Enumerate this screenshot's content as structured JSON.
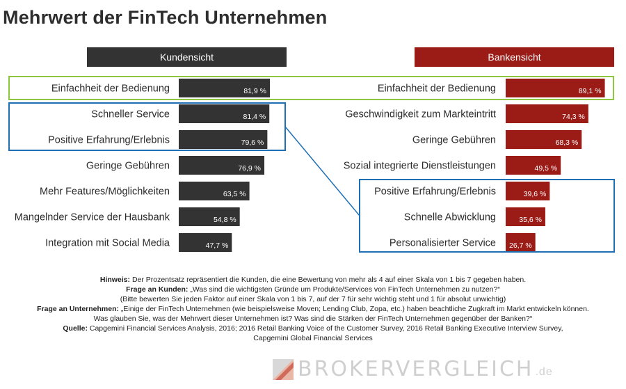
{
  "title": "Mehrwert der FinTech Unternehmen",
  "colors": {
    "kunden": "#333333",
    "bank": "#9b1b17",
    "highlight_green": "#8dc63f",
    "highlight_blue": "#1f6fb5"
  },
  "chart_data": [
    {
      "type": "bar",
      "title": "Kundensicht",
      "categories": [
        "Einfachheit der Bedienung",
        "Schneller Service",
        "Positive Erfahrung/Erlebnis",
        "Geringe Gebühren",
        "Mehr Features/Möglichkeiten",
        "Mangelnder Service der Hausbank",
        "Integration mit Social Media"
      ],
      "values": [
        81.9,
        81.4,
        79.6,
        76.9,
        63.5,
        54.8,
        47.7
      ],
      "labels": [
        "81,9 %",
        "81,4 %",
        "79,6 %",
        "76,9 %",
        "63,5 %",
        "54,8 %",
        "47,7 %"
      ],
      "orientation": "horizontal",
      "xlim": [
        0,
        100
      ],
      "color": "#333333"
    },
    {
      "type": "bar",
      "title": "Bankensicht",
      "categories": [
        "Einfachheit der Bedienung",
        "Geschwindigkeit zum Markteintritt",
        "Geringe Gebühren",
        "Sozial integrierte Dienstleistungen",
        "Positive Erfahrung/Erlebnis",
        "Schnelle Abwicklung",
        "Personalisierter Service"
      ],
      "values": [
        89.1,
        74.3,
        68.3,
        49.5,
        39.6,
        35.6,
        26.7
      ],
      "labels": [
        "89,1 %",
        "74,3 %",
        "68,3 %",
        "49,5 %",
        "39,6 %",
        "35,6 %",
        "26,7 %"
      ],
      "orientation": "horizontal",
      "xlim": [
        0,
        100
      ],
      "color": "#9b1b17"
    }
  ],
  "notes": {
    "hinweis_label": "Hinweis:",
    "hinweis_text": " Der Prozentsatz repräsentiert die Kunden, die eine Bewertung von mehr als 4 auf einer Skala von 1 bis 7 gegeben haben.",
    "frage_kunden_label": "Frage an Kunden:",
    "frage_kunden_text": " „Was sind die wichtigsten Gründe um Produkte/Services von FinTech Unternehmen zu nutzen?“",
    "frage_kunden_sub": "(Bitte bewerten Sie jeden Faktor auf einer Skala von 1 bis 7, auf der 7 für sehr wichtig steht und 1 für absolut unwichtig)",
    "frage_unternehmen_label": "Frage an Unternehmen:",
    "frage_unternehmen_text": " „Einige der FinTech Unternehmen (wie beispielsweise Moven; Lending Club, Zopa, etc.) haben beachtliche Zugkraft im Markt entwickeln können.",
    "frage_unternehmen_text2": "Was glauben Sie, was der Mehrwert dieser Unternehmen ist? Was sind die Stärken der FinTech Unternehmen gegenüber der Banken?“",
    "quelle_label": "Quelle:",
    "quelle_text": " Capgemini Financial Services Analysis, 2016; 2016 Retail Banking Voice of the Customer Survey, 2016 Retail Banking Executive Interview Survey,",
    "quelle_text2": "Capgemini Global Financial Services"
  },
  "brand": {
    "name": "BrokerVergleich",
    "suffix": ".de",
    "display": "BROKERVERGLEICH"
  }
}
